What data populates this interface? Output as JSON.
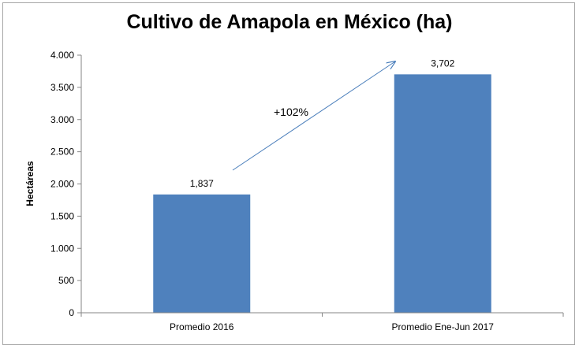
{
  "chart_data": {
    "type": "bar",
    "title": "Cultivo de Amapola en México (ha)",
    "xlabel": "",
    "ylabel": "Hectáreas",
    "categories": [
      "Promedio 2016",
      "Promedio Ene-Jun 2017"
    ],
    "values": [
      1837,
      3702
    ],
    "data_labels": [
      "1,837",
      "3,702"
    ],
    "ylim": [
      0,
      4000
    ],
    "yticks": [
      0,
      500,
      1000,
      1500,
      2000,
      2500,
      3000,
      3500,
      4000
    ],
    "ytick_labels": [
      "0",
      "500",
      "1.000",
      "1.500",
      "2.000",
      "2.500",
      "3.000",
      "3.500",
      "4.000"
    ],
    "bar_color": "#4f81bd",
    "grid": false,
    "legend": "none",
    "annotation": {
      "text": "+102%",
      "arrow": "from first bar to second bar"
    }
  }
}
